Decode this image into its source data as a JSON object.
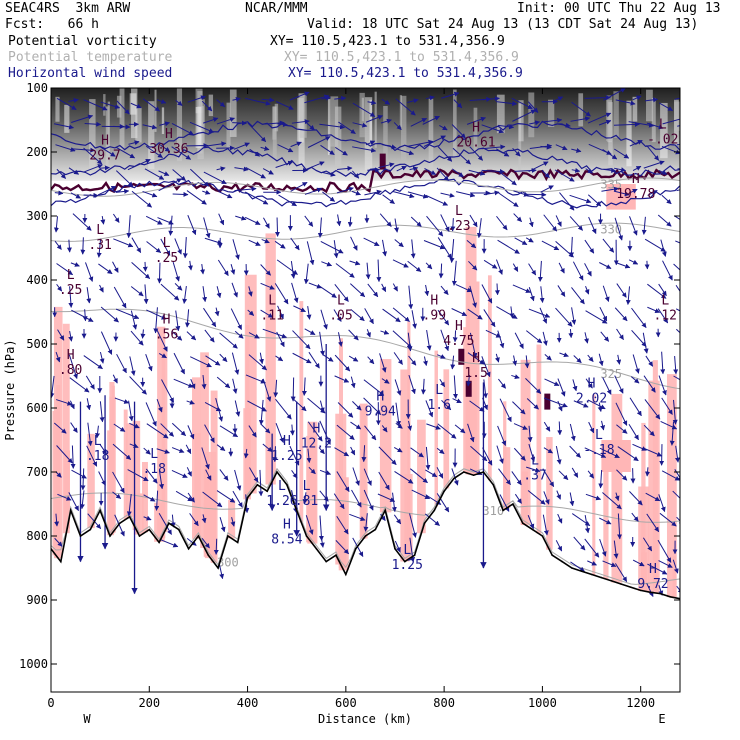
{
  "header": {
    "left_line1": "SEAC4RS  3km ARW",
    "left_line2": "Fcst:   66 h",
    "center": "NCAR/MMM",
    "init": "Init: 00 UTC Thu 22 Aug 13",
    "valid": "Valid: 18 UTC Sat 24 Aug 13 (13 CDT Sat 24 Aug 13)"
  },
  "legend": [
    {
      "name": "Potential vorticity",
      "xy": "XY= 110.5,423.1 to 531.4,356.9",
      "color": "#000000"
    },
    {
      "name": "Potential temperature",
      "xy": "XY= 110.5,423.1 to 531.4,356.9",
      "color": "#b0b0b0"
    },
    {
      "name": "Horizontal wind speed",
      "xy": "XY= 110.5,423.1 to 531.4,356.9",
      "color": "#1a1a8c"
    }
  ],
  "colors": {
    "pv_shading": "#ffb6b6",
    "pv_contour": "#4a0030",
    "wind": "#1a1a8c",
    "theta": "#a8a8a8",
    "terrain": "#000000"
  },
  "chart_data": {
    "type": "cross-section",
    "xlabel": "Distance (km)",
    "ylabel": "Pressure (hPa)",
    "xlim": [
      0,
      1280
    ],
    "ylim": [
      1050,
      100
    ],
    "x_ticks": [
      0,
      200,
      400,
      600,
      800,
      1000,
      1200
    ],
    "y_ticks": [
      100,
      200,
      300,
      400,
      500,
      600,
      700,
      800,
      900,
      1000
    ],
    "x_end_labels": {
      "left": "W",
      "right": "E"
    },
    "terrain_profile": {
      "x": [
        0,
        20,
        40,
        60,
        80,
        100,
        120,
        140,
        160,
        180,
        200,
        220,
        240,
        260,
        280,
        300,
        320,
        340,
        360,
        380,
        400,
        420,
        440,
        460,
        480,
        500,
        520,
        540,
        560,
        580,
        600,
        620,
        640,
        660,
        680,
        700,
        720,
        740,
        760,
        780,
        800,
        820,
        840,
        860,
        880,
        900,
        920,
        940,
        960,
        980,
        1000,
        1020,
        1040,
        1060,
        1080,
        1100,
        1120,
        1140,
        1160,
        1180,
        1200,
        1220,
        1240,
        1260,
        1280
      ],
      "p": [
        820,
        840,
        760,
        800,
        790,
        760,
        800,
        780,
        770,
        800,
        790,
        810,
        780,
        790,
        820,
        800,
        830,
        850,
        800,
        810,
        740,
        720,
        730,
        700,
        720,
        760,
        800,
        820,
        840,
        830,
        860,
        820,
        800,
        790,
        760,
        820,
        840,
        830,
        780,
        760,
        730,
        710,
        700,
        705,
        700,
        720,
        760,
        750,
        780,
        790,
        800,
        830,
        840,
        850,
        855,
        860,
        865,
        870,
        875,
        880,
        885,
        888,
        890,
        895,
        898
      ]
    },
    "theta_contours": [
      {
        "label": "335",
        "p_left": 260,
        "p_right": 250
      },
      {
        "label": "330",
        "p_left": 330,
        "p_right": 320
      },
      {
        "label": "325",
        "p_left": 440,
        "p_right": 560
      },
      {
        "label": "310",
        "p_left": 740,
        "p_right": 770
      },
      {
        "label": "300",
        "p_left": 830,
        "p_right": 870
      }
    ],
    "extrema": [
      {
        "t": "H",
        "v": "29.7",
        "x": 110,
        "p": 210
      },
      {
        "t": "H",
        "v": "30.36",
        "x": 240,
        "p": 200
      },
      {
        "t": "H",
        "v": "20.61",
        "x": 865,
        "p": 190
      },
      {
        "t": "L",
        "v": "-.02",
        "x": 1245,
        "p": 185
      },
      {
        "t": "H",
        "v": "19.78",
        "x": 1190,
        "p": 270
      },
      {
        "t": "L",
        "v": ".23",
        "x": 830,
        "p": 320
      },
      {
        "t": "L",
        "v": ".31",
        "x": 100,
        "p": 350
      },
      {
        "t": "L",
        "v": ".25",
        "x": 235,
        "p": 370
      },
      {
        "t": "L",
        "v": ".25",
        "x": 40,
        "p": 420
      },
      {
        "t": "L",
        "v": ".11",
        "x": 450,
        "p": 460
      },
      {
        "t": "L",
        "v": ".05",
        "x": 590,
        "p": 460
      },
      {
        "t": "H",
        "v": ".99",
        "x": 780,
        "p": 460
      },
      {
        "t": "L",
        "v": ".12",
        "x": 1250,
        "p": 460
      },
      {
        "t": "H",
        "v": ".56",
        "x": 235,
        "p": 490
      },
      {
        "t": "H",
        "v": "4.75",
        "x": 830,
        "p": 500
      },
      {
        "t": "H",
        "v": ".80",
        "x": 40,
        "p": 545
      },
      {
        "t": "H",
        "v": "1.5",
        "x": 865,
        "p": 550
      },
      {
        "t": "L",
        "v": "1.6",
        "x": 790,
        "p": 600
      },
      {
        "t": "H",
        "v": "2.02",
        "x": 1100,
        "p": 590
      },
      {
        "t": "H",
        "v": "9.94",
        "x": 670,
        "p": 610
      },
      {
        "t": "H",
        "v": "12.2",
        "x": 540,
        "p": 660
      },
      {
        "t": "H",
        "v": "1.25",
        "x": 480,
        "p": 680
      },
      {
        "t": "L",
        "v": "-.18",
        "x": 1115,
        "p": 670
      },
      {
        "t": "L",
        "v": ".18",
        "x": 95,
        "p": 680
      },
      {
        "t": "L",
        "v": ".18",
        "x": 210,
        "p": 700
      },
      {
        "t": "L",
        "v": "1.26",
        "x": 470,
        "p": 750
      },
      {
        "t": "L",
        "v": ".81",
        "x": 520,
        "p": 750
      },
      {
        "t": "L",
        "v": ".37",
        "x": 985,
        "p": 710
      },
      {
        "t": "H",
        "v": "8.54",
        "x": 480,
        "p": 810
      },
      {
        "t": "L",
        "v": "1.25",
        "x": 725,
        "p": 850
      },
      {
        "t": "H",
        "v": "9.72",
        "x": 1225,
        "p": 880
      }
    ]
  }
}
